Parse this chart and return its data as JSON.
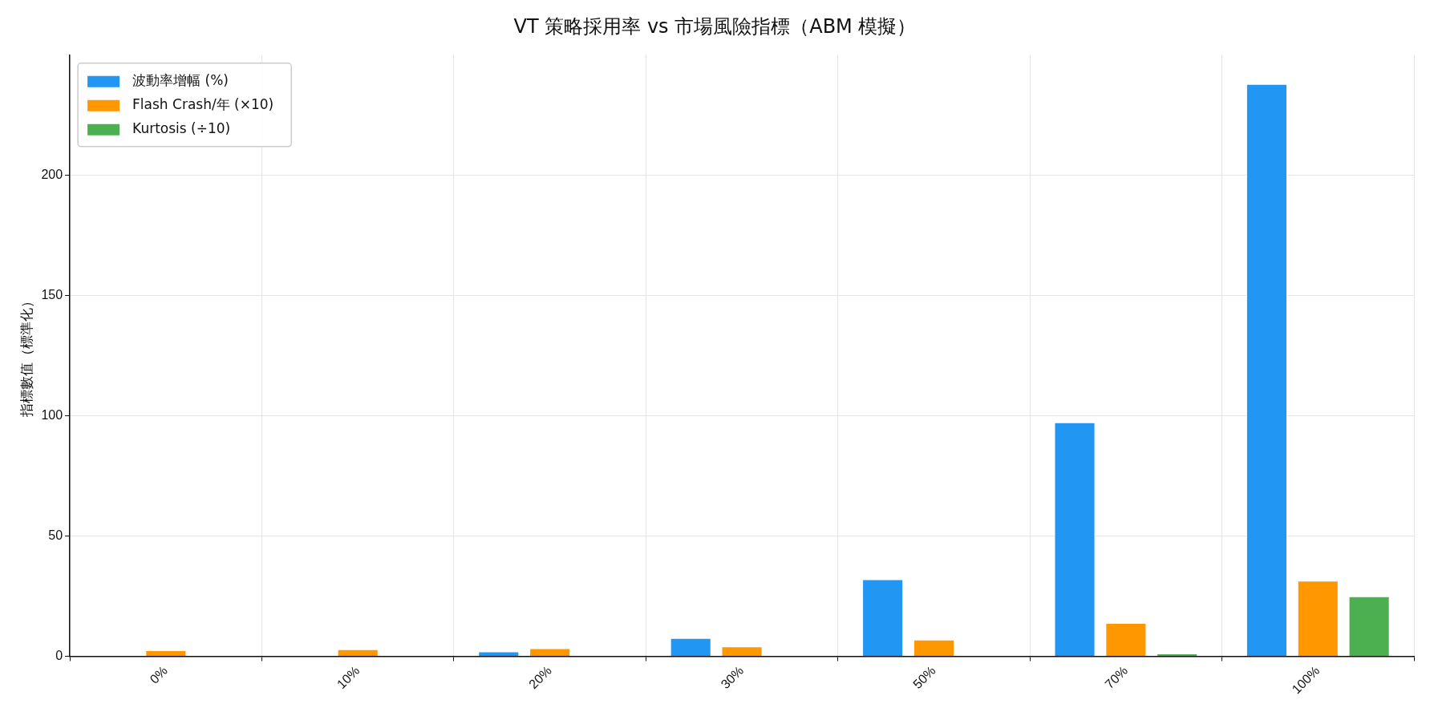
{
  "chart_data": {
    "type": "bar",
    "title": "VT 策略採用率 vs 市場風險指標（ABM 模擬）",
    "ylabel": "指標數值（標準化）",
    "categories": [
      "0%",
      "10%",
      "20%",
      "30%",
      "50%",
      "70%",
      "100%"
    ],
    "series": [
      {
        "name": "波動率增幅 (%)",
        "color": "#2196f3",
        "values": [
          0,
          0,
          2,
          7.6,
          32,
          97.3,
          238
        ]
      },
      {
        "name": "Flash Crash/年 (×10)",
        "color": "#ff9800",
        "values": [
          2.5,
          2.9,
          3.3,
          4.1,
          6.9,
          13.8,
          31.4
        ]
      },
      {
        "name": "Kurtosis (÷10)",
        "color": "#4caf50",
        "values": [
          0,
          0,
          0,
          0,
          0,
          1.2,
          24.9
        ]
      }
    ],
    "ylim": [
      0,
      250
    ],
    "yticks": [
      0,
      50,
      100,
      150,
      200
    ],
    "grid": true,
    "legend": "top left"
  }
}
